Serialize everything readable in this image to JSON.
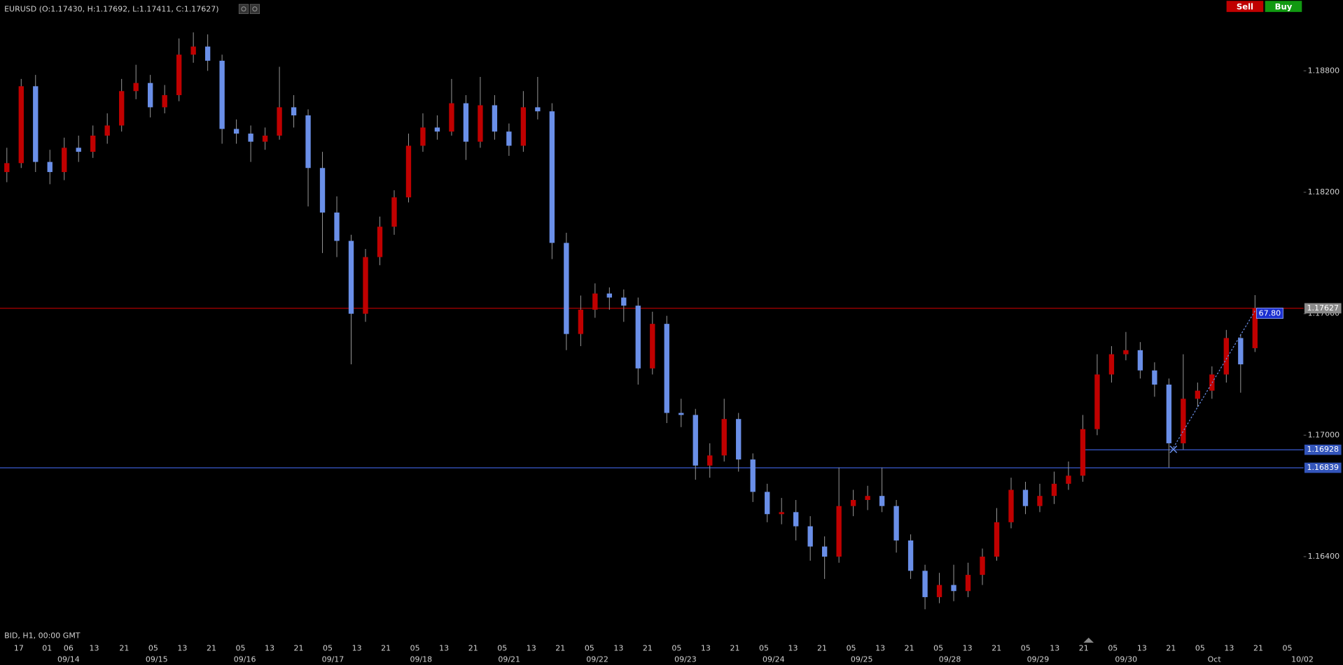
{
  "header": {
    "title": "EURUSD (O:1.17430, H:1.17692, L:1.17411, C:1.17627)",
    "sell": "Sell",
    "buy": "Buy"
  },
  "chart_data": {
    "type": "candlestick",
    "footer": "BID, H1, 00:00 GMT",
    "up_color": "#c00000",
    "down_color": "#6a8fe8",
    "ylim": [
      1.16,
      1.1915
    ],
    "yticks": [
      {
        "value": 1.164,
        "label": "1.16400"
      },
      {
        "value": 1.17,
        "label": "1.17000"
      },
      {
        "value": 1.176,
        "label": "1.17600"
      },
      {
        "value": 1.182,
        "label": "1.18200"
      },
      {
        "value": 1.188,
        "label": "1.18800"
      }
    ],
    "hour_labels": [
      "17",
      "01",
      "06",
      "13",
      "21",
      "05",
      "13",
      "21",
      "05",
      "13",
      "21",
      "05",
      "13",
      "21",
      "05",
      "13",
      "21",
      "05",
      "13",
      "21",
      "05",
      "13",
      "21",
      "05",
      "13",
      "21",
      "05",
      "13",
      "21",
      "05",
      "13",
      "21",
      "05",
      "13",
      "21",
      "05",
      "13",
      "21",
      "05",
      "13",
      "21",
      "05",
      "13",
      "21",
      "05"
    ],
    "date_labels": [
      "09/14",
      "09/15",
      "09/16",
      "09/17",
      "09/18",
      "09/21",
      "09/22",
      "09/23",
      "09/24",
      "09/25",
      "09/28",
      "09/29",
      "09/30",
      "Oct",
      "10/02"
    ],
    "levels": [
      {
        "value": 1.17627,
        "color": "#b00000"
      },
      {
        "value": 1.16839,
        "color": "#3a5bd0"
      },
      {
        "value": 1.16928,
        "color": "#3a5bd0"
      }
    ],
    "annotation": "67.80",
    "ohlc": [
      [
        1.183,
        1.1842,
        1.1825,
        1.18344
      ],
      [
        1.18344,
        1.1876,
        1.1832,
        1.18724
      ],
      [
        1.18724,
        1.1878,
        1.183,
        1.1835
      ],
      [
        1.1835,
        1.1841,
        1.1824,
        1.183
      ],
      [
        1.183,
        1.1847,
        1.1826,
        1.1842
      ],
      [
        1.1842,
        1.1848,
        1.1835,
        1.184
      ],
      [
        1.184,
        1.1853,
        1.1837,
        1.1848
      ],
      [
        1.1848,
        1.1859,
        1.1844,
        1.1853
      ],
      [
        1.1853,
        1.1876,
        1.185,
        1.187
      ],
      [
        1.187,
        1.1883,
        1.1866,
        1.1874
      ],
      [
        1.1874,
        1.1878,
        1.1857,
        1.1862
      ],
      [
        1.1862,
        1.1873,
        1.1859,
        1.1868
      ],
      [
        1.1868,
        1.1896,
        1.1865,
        1.1888
      ],
      [
        1.1888,
        1.1899,
        1.1884,
        1.1892
      ],
      [
        1.1892,
        1.1898,
        1.188,
        1.1885
      ],
      [
        1.1885,
        1.1888,
        1.1844,
        1.18513
      ],
      [
        1.18513,
        1.1856,
        1.1844,
        1.1849
      ],
      [
        1.1849,
        1.1853,
        1.1835,
        1.1845
      ],
      [
        1.1845,
        1.1852,
        1.1841,
        1.1848
      ],
      [
        1.1848,
        1.1882,
        1.1846,
        1.1862
      ],
      [
        1.1862,
        1.1868,
        1.1852,
        1.1858
      ],
      [
        1.1858,
        1.1861,
        1.1813,
        1.1832
      ],
      [
        1.1832,
        1.184,
        1.179,
        1.181
      ],
      [
        1.181,
        1.1818,
        1.1788,
        1.1796
      ],
      [
        1.1796,
        1.1799,
        1.1735,
        1.176
      ],
      [
        1.176,
        1.1792,
        1.1756,
        1.1788
      ],
      [
        1.1788,
        1.1808,
        1.1784,
        1.1803
      ],
      [
        1.1803,
        1.1821,
        1.1799,
        1.18175
      ],
      [
        1.18175,
        1.1849,
        1.1815,
        1.1843
      ],
      [
        1.1843,
        1.1859,
        1.184,
        1.1852
      ],
      [
        1.1852,
        1.1858,
        1.1846,
        1.185
      ],
      [
        1.185,
        1.1876,
        1.1848,
        1.1864
      ],
      [
        1.1864,
        1.1868,
        1.1836,
        1.1845
      ],
      [
        1.1845,
        1.1877,
        1.1842,
        1.1863
      ],
      [
        1.1863,
        1.1868,
        1.1846,
        1.185
      ],
      [
        1.185,
        1.1854,
        1.1838,
        1.1843
      ],
      [
        1.1843,
        1.187,
        1.184,
        1.1862
      ],
      [
        1.1862,
        1.1877,
        1.1856,
        1.186
      ],
      [
        1.186,
        1.1864,
        1.1787,
        1.1795
      ],
      [
        1.1795,
        1.18,
        1.1742,
        1.175
      ],
      [
        1.175,
        1.1769,
        1.1744,
        1.1762
      ],
      [
        1.1762,
        1.1775,
        1.1758,
        1.177
      ],
      [
        1.177,
        1.1773,
        1.1762,
        1.1768
      ],
      [
        1.1768,
        1.1772,
        1.1756,
        1.1764
      ],
      [
        1.1764,
        1.1768,
        1.1725,
        1.1733
      ],
      [
        1.1733,
        1.1761,
        1.173,
        1.1755
      ],
      [
        1.1755,
        1.1759,
        1.1706,
        1.1711
      ],
      [
        1.1711,
        1.1718,
        1.1704,
        1.171
      ],
      [
        1.171,
        1.1713,
        1.1678,
        1.1685
      ],
      [
        1.1685,
        1.1696,
        1.1679,
        1.169
      ],
      [
        1.169,
        1.1718,
        1.1687,
        1.1708
      ],
      [
        1.1708,
        1.1711,
        1.1682,
        1.1688
      ],
      [
        1.1688,
        1.1691,
        1.1667,
        1.1672
      ],
      [
        1.1672,
        1.1676,
        1.1657,
        1.1661
      ],
      [
        1.1661,
        1.1669,
        1.1656,
        1.1662
      ],
      [
        1.1662,
        1.1668,
        1.1648,
        1.1655
      ],
      [
        1.1655,
        1.166,
        1.1638,
        1.1645
      ],
      [
        1.1645,
        1.165,
        1.1629,
        1.164
      ],
      [
        1.164,
        1.1684,
        1.1637,
        1.1665
      ],
      [
        1.1665,
        1.1673,
        1.166,
        1.1668
      ],
      [
        1.1668,
        1.1675,
        1.1663,
        1.167
      ],
      [
        1.167,
        1.1684,
        1.1662,
        1.1665
      ],
      [
        1.1665,
        1.1668,
        1.1642,
        1.1648
      ],
      [
        1.1648,
        1.1651,
        1.1629,
        1.1633
      ],
      [
        1.1633,
        1.1636,
        1.1614,
        1.162
      ],
      [
        1.162,
        1.1632,
        1.1617,
        1.1626
      ],
      [
        1.1626,
        1.1636,
        1.1618,
        1.1623
      ],
      [
        1.1623,
        1.1637,
        1.162,
        1.1631
      ],
      [
        1.1631,
        1.1644,
        1.1626,
        1.164
      ],
      [
        1.164,
        1.1664,
        1.1638,
        1.1657
      ],
      [
        1.1657,
        1.1679,
        1.1654,
        1.1673
      ],
      [
        1.1673,
        1.1677,
        1.1661,
        1.1665
      ],
      [
        1.1665,
        1.1676,
        1.1662,
        1.167
      ],
      [
        1.167,
        1.1682,
        1.1666,
        1.1676
      ],
      [
        1.1676,
        1.1687,
        1.1673,
        1.168
      ],
      [
        1.168,
        1.171,
        1.1677,
        1.1703
      ],
      [
        1.1703,
        1.174,
        1.17,
        1.173
      ],
      [
        1.173,
        1.1744,
        1.1726,
        1.174
      ],
      [
        1.174,
        1.1751,
        1.1737,
        1.1742
      ],
      [
        1.1742,
        1.1746,
        1.1728,
        1.1732
      ],
      [
        1.1732,
        1.1736,
        1.1719,
        1.1725
      ],
      [
        1.1725,
        1.1728,
        1.1684,
        1.1696
      ],
      [
        1.1696,
        1.174,
        1.1693,
        1.1718
      ],
      [
        1.1718,
        1.1726,
        1.1714,
        1.1722
      ],
      [
        1.1722,
        1.1734,
        1.1718,
        1.173
      ],
      [
        1.173,
        1.1752,
        1.1726,
        1.1748
      ],
      [
        1.1748,
        1.175,
        1.1721,
        1.1735
      ],
      [
        1.1743,
        1.17692,
        1.17411,
        1.17627
      ]
    ]
  }
}
